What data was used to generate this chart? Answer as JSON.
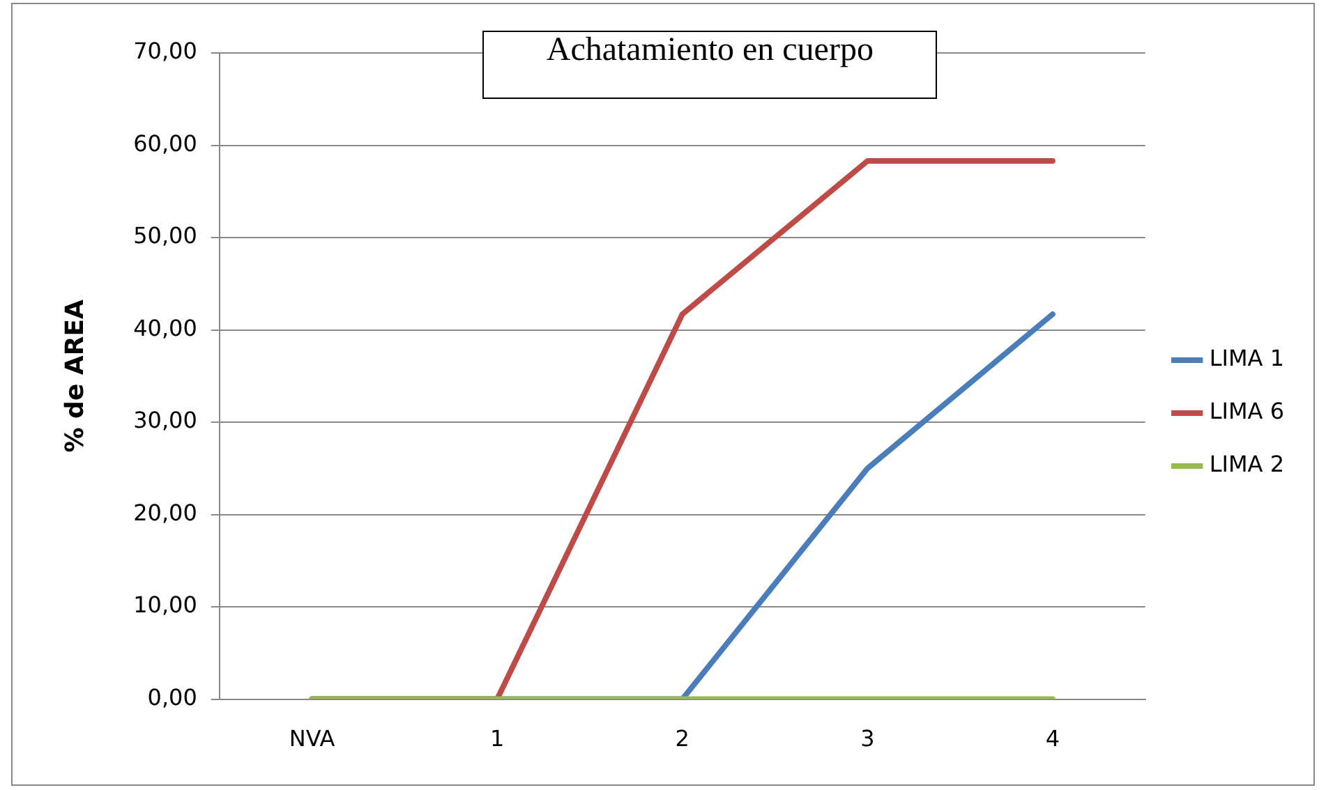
{
  "chart_data": {
    "type": "line",
    "title": "Achatamiento en cuerpo",
    "ylabel": "% de AREA",
    "categories": [
      "NVA",
      "1",
      "2",
      "3",
      "4"
    ],
    "series": [
      {
        "name": "LIMA 1",
        "color": "#4a7ebb",
        "values": [
          0,
          0,
          0,
          25,
          41.7
        ]
      },
      {
        "name": "LIMA 6",
        "color": "#be4b48",
        "values": [
          0,
          0,
          41.7,
          58.3,
          58.3
        ]
      },
      {
        "name": "LIMA 2",
        "color": "#98b954",
        "values": [
          0,
          0,
          0,
          0,
          0
        ]
      }
    ],
    "ylim": [
      0,
      70
    ],
    "yticks": [
      {
        "value": 0,
        "label": "0,00"
      },
      {
        "value": 10,
        "label": "10,00"
      },
      {
        "value": 20,
        "label": "20,00"
      },
      {
        "value": 30,
        "label": "30,00"
      },
      {
        "value": 40,
        "label": "40,00"
      },
      {
        "value": 50,
        "label": "50,00"
      },
      {
        "value": 60,
        "label": "60,00"
      },
      {
        "value": 70,
        "label": "70,00"
      }
    ],
    "grid": "y",
    "legend": "right",
    "marker": "none",
    "line_style": "solid"
  }
}
